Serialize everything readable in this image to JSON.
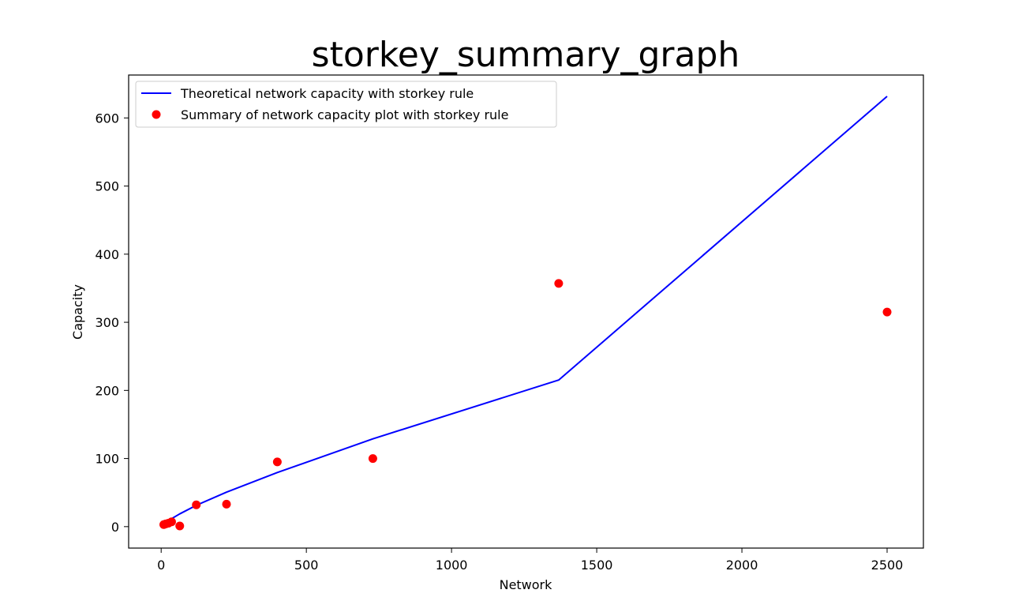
{
  "chart_data": {
    "type": "line",
    "title": "storkey_summary_graph",
    "xlabel": "Network",
    "ylabel": "Capacity",
    "xlim": [
      -112,
      2625
    ],
    "ylim": [
      -31.5,
      663
    ],
    "xticks": [
      0,
      500,
      1000,
      1500,
      2000,
      2500
    ],
    "yticks": [
      0,
      100,
      200,
      300,
      400,
      500,
      600
    ],
    "grid": false,
    "legend_position": "top-left",
    "colors": {
      "line": "#0000ff",
      "points": "#ff0000"
    },
    "series": [
      {
        "name": "Theoretical network capacity with storkey rule",
        "kind": "line",
        "x": [
          25,
          64,
          121,
          225,
          400,
          729,
          1369,
          2500
        ],
        "y": [
          8.9,
          18.7,
          31.3,
          50.6,
          79.4,
          128.9,
          215.2,
          631.7
        ]
      },
      {
        "name": "Summary of network capacity plot with storkey rule",
        "kind": "scatter",
        "x": [
          9,
          16,
          25,
          36,
          64,
          121,
          225,
          400,
          729,
          1369,
          2500
        ],
        "y": [
          3,
          4,
          5,
          7,
          1,
          32,
          33,
          95,
          100,
          357,
          315
        ]
      }
    ]
  }
}
